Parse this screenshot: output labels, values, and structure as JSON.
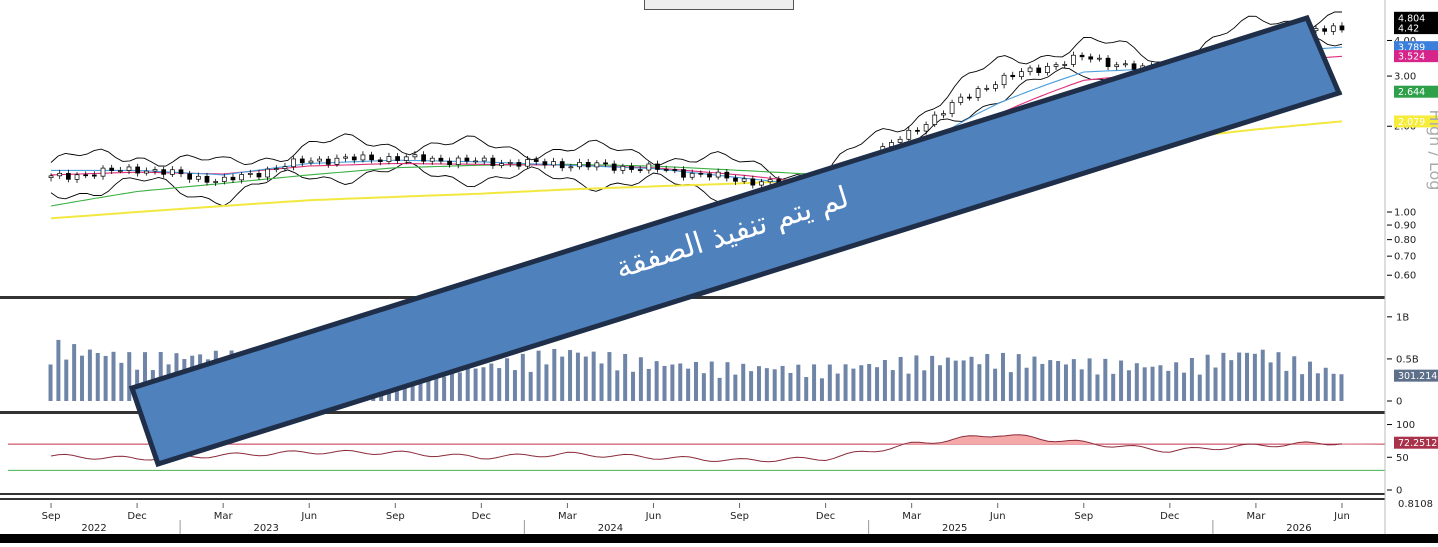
{
  "colors": {
    "candle_up": "#ffffff",
    "candle_down": "#000000",
    "bollinger": "#000000",
    "ma_fast_blue": "#4aa0e0",
    "ma_pink": "#e0307a",
    "ma_green": "#3cb043",
    "ma_yellow": "#f2e840",
    "volume": "#6f85a8",
    "rsi_line": "#8b2b3a",
    "rsi_upper": "#c0304a",
    "rsi_lower": "#4caf50",
    "rsi_overbought_fill": "#f5a8a8",
    "banner_fill": "#4f81bd",
    "banner_border": "#1f2f4a",
    "tag_black": "#000000",
    "tag_blue": "#3b7fdc",
    "tag_magenta": "#d6248a",
    "tag_green": "#2ea04a",
    "tag_yellow": "#f5ec3c",
    "tag_gray": "#5e6f8a",
    "tag_rsi": "#a8324a"
  },
  "banner": {
    "text": "لم يتم تنفيذ الصفقة"
  },
  "axis_label_side": "High / Log",
  "price_tags": [
    {
      "value": "4.804",
      "color_key": "tag_black"
    },
    {
      "value": "4.42",
      "color_key": "tag_black"
    },
    {
      "value": "3.789",
      "color_key": "tag_blue"
    },
    {
      "value": "3.524",
      "color_key": "tag_magenta"
    },
    {
      "value": "2.644",
      "color_key": "tag_green"
    },
    {
      "value": "2.079",
      "color_key": "tag_yellow"
    }
  ],
  "volume_tag": "301.214M",
  "rsi_tag": "72.2512",
  "bottom_tag": "0.8108",
  "chart_data": [
    {
      "type": "line",
      "panel": "price",
      "scale": "log",
      "yaxis_ticks": [
        "4.00",
        "3.00",
        "2.00",
        "1.00",
        "0.90",
        "0.80",
        "0.70",
        "0.60"
      ],
      "x": [
        "2022-09",
        "2022-12",
        "2023-03",
        "2023-06",
        "2023-09",
        "2023-12",
        "2024-03",
        "2024-06",
        "2024-09",
        "2024-12",
        "2025-03",
        "2025-06",
        "2025-09",
        "2025-12",
        "2026-03",
        "2026-06"
      ],
      "series": [
        {
          "values": [
            1.32,
            1.42,
            1.28,
            1.52,
            1.55,
            1.5,
            1.47,
            1.42,
            1.3,
            1.2,
            1.9,
            2.9,
            3.5,
            3.0,
            4.05,
            4.42
          ]
        },
        {
          "values": [
            0.95,
            1.0,
            1.05,
            1.1,
            1.13,
            1.16,
            1.2,
            1.23,
            1.26,
            1.3,
            1.38,
            1.48,
            1.62,
            1.8,
            1.95,
            2.08
          ]
        },
        {
          "values": [
            1.05,
            1.18,
            1.26,
            1.35,
            1.43,
            1.46,
            1.47,
            1.45,
            1.4,
            1.35,
            1.4,
            1.7,
            2.1,
            2.3,
            2.5,
            2.64
          ]
        },
        {
          "values": [
            1.35,
            1.38,
            1.36,
            1.45,
            1.48,
            1.47,
            1.46,
            1.43,
            1.35,
            1.25,
            1.5,
            2.2,
            2.9,
            3.1,
            3.35,
            3.52
          ]
        },
        {
          "values": [
            1.4,
            1.4,
            1.35,
            1.48,
            1.52,
            1.5,
            1.46,
            1.42,
            1.32,
            1.22,
            1.6,
            2.4,
            3.1,
            3.2,
            3.6,
            3.79
          ]
        }
      ]
    },
    {
      "type": "bar",
      "panel": "volume",
      "yaxis_ticks": [
        "1B",
        "0.5B",
        "0"
      ],
      "x": [
        "2022-09",
        "2022-12",
        "2023-03",
        "2023-06",
        "2023-09",
        "2023-12",
        "2024-03",
        "2024-06",
        "2024-09",
        "2024-12",
        "2025-03",
        "2025-06",
        "2025-09",
        "2025-12",
        "2026-03",
        "2026-06"
      ],
      "values": [
        620,
        480,
        520,
        360,
        350,
        380,
        560,
        420,
        380,
        360,
        450,
        480,
        430,
        380,
        560,
        300
      ]
    },
    {
      "type": "line",
      "panel": "rsi",
      "yaxis_ticks": [
        "100",
        "50",
        "0"
      ],
      "x": [
        "2022-09",
        "2022-12",
        "2023-03",
        "2023-06",
        "2023-09",
        "2023-12",
        "2024-03",
        "2024-06",
        "2024-09",
        "2024-12",
        "2025-03",
        "2025-06",
        "2025-09",
        "2025-12",
        "2026-03",
        "2026-06"
      ],
      "values": [
        52,
        48,
        53,
        58,
        57,
        50,
        55,
        50,
        45,
        48,
        70,
        85,
        72,
        60,
        68,
        72.25
      ]
    }
  ],
  "xaxis": {
    "months": [
      "Sep",
      "Dec",
      "Mar",
      "Jun",
      "Sep",
      "Dec",
      "Mar",
      "Jun",
      "Sep",
      "Dec",
      "Mar",
      "Jun",
      "Sep",
      "Dec",
      "Mar",
      "Jun"
    ],
    "years": [
      "2022",
      "2023",
      "2024",
      "2025",
      "2026"
    ]
  }
}
